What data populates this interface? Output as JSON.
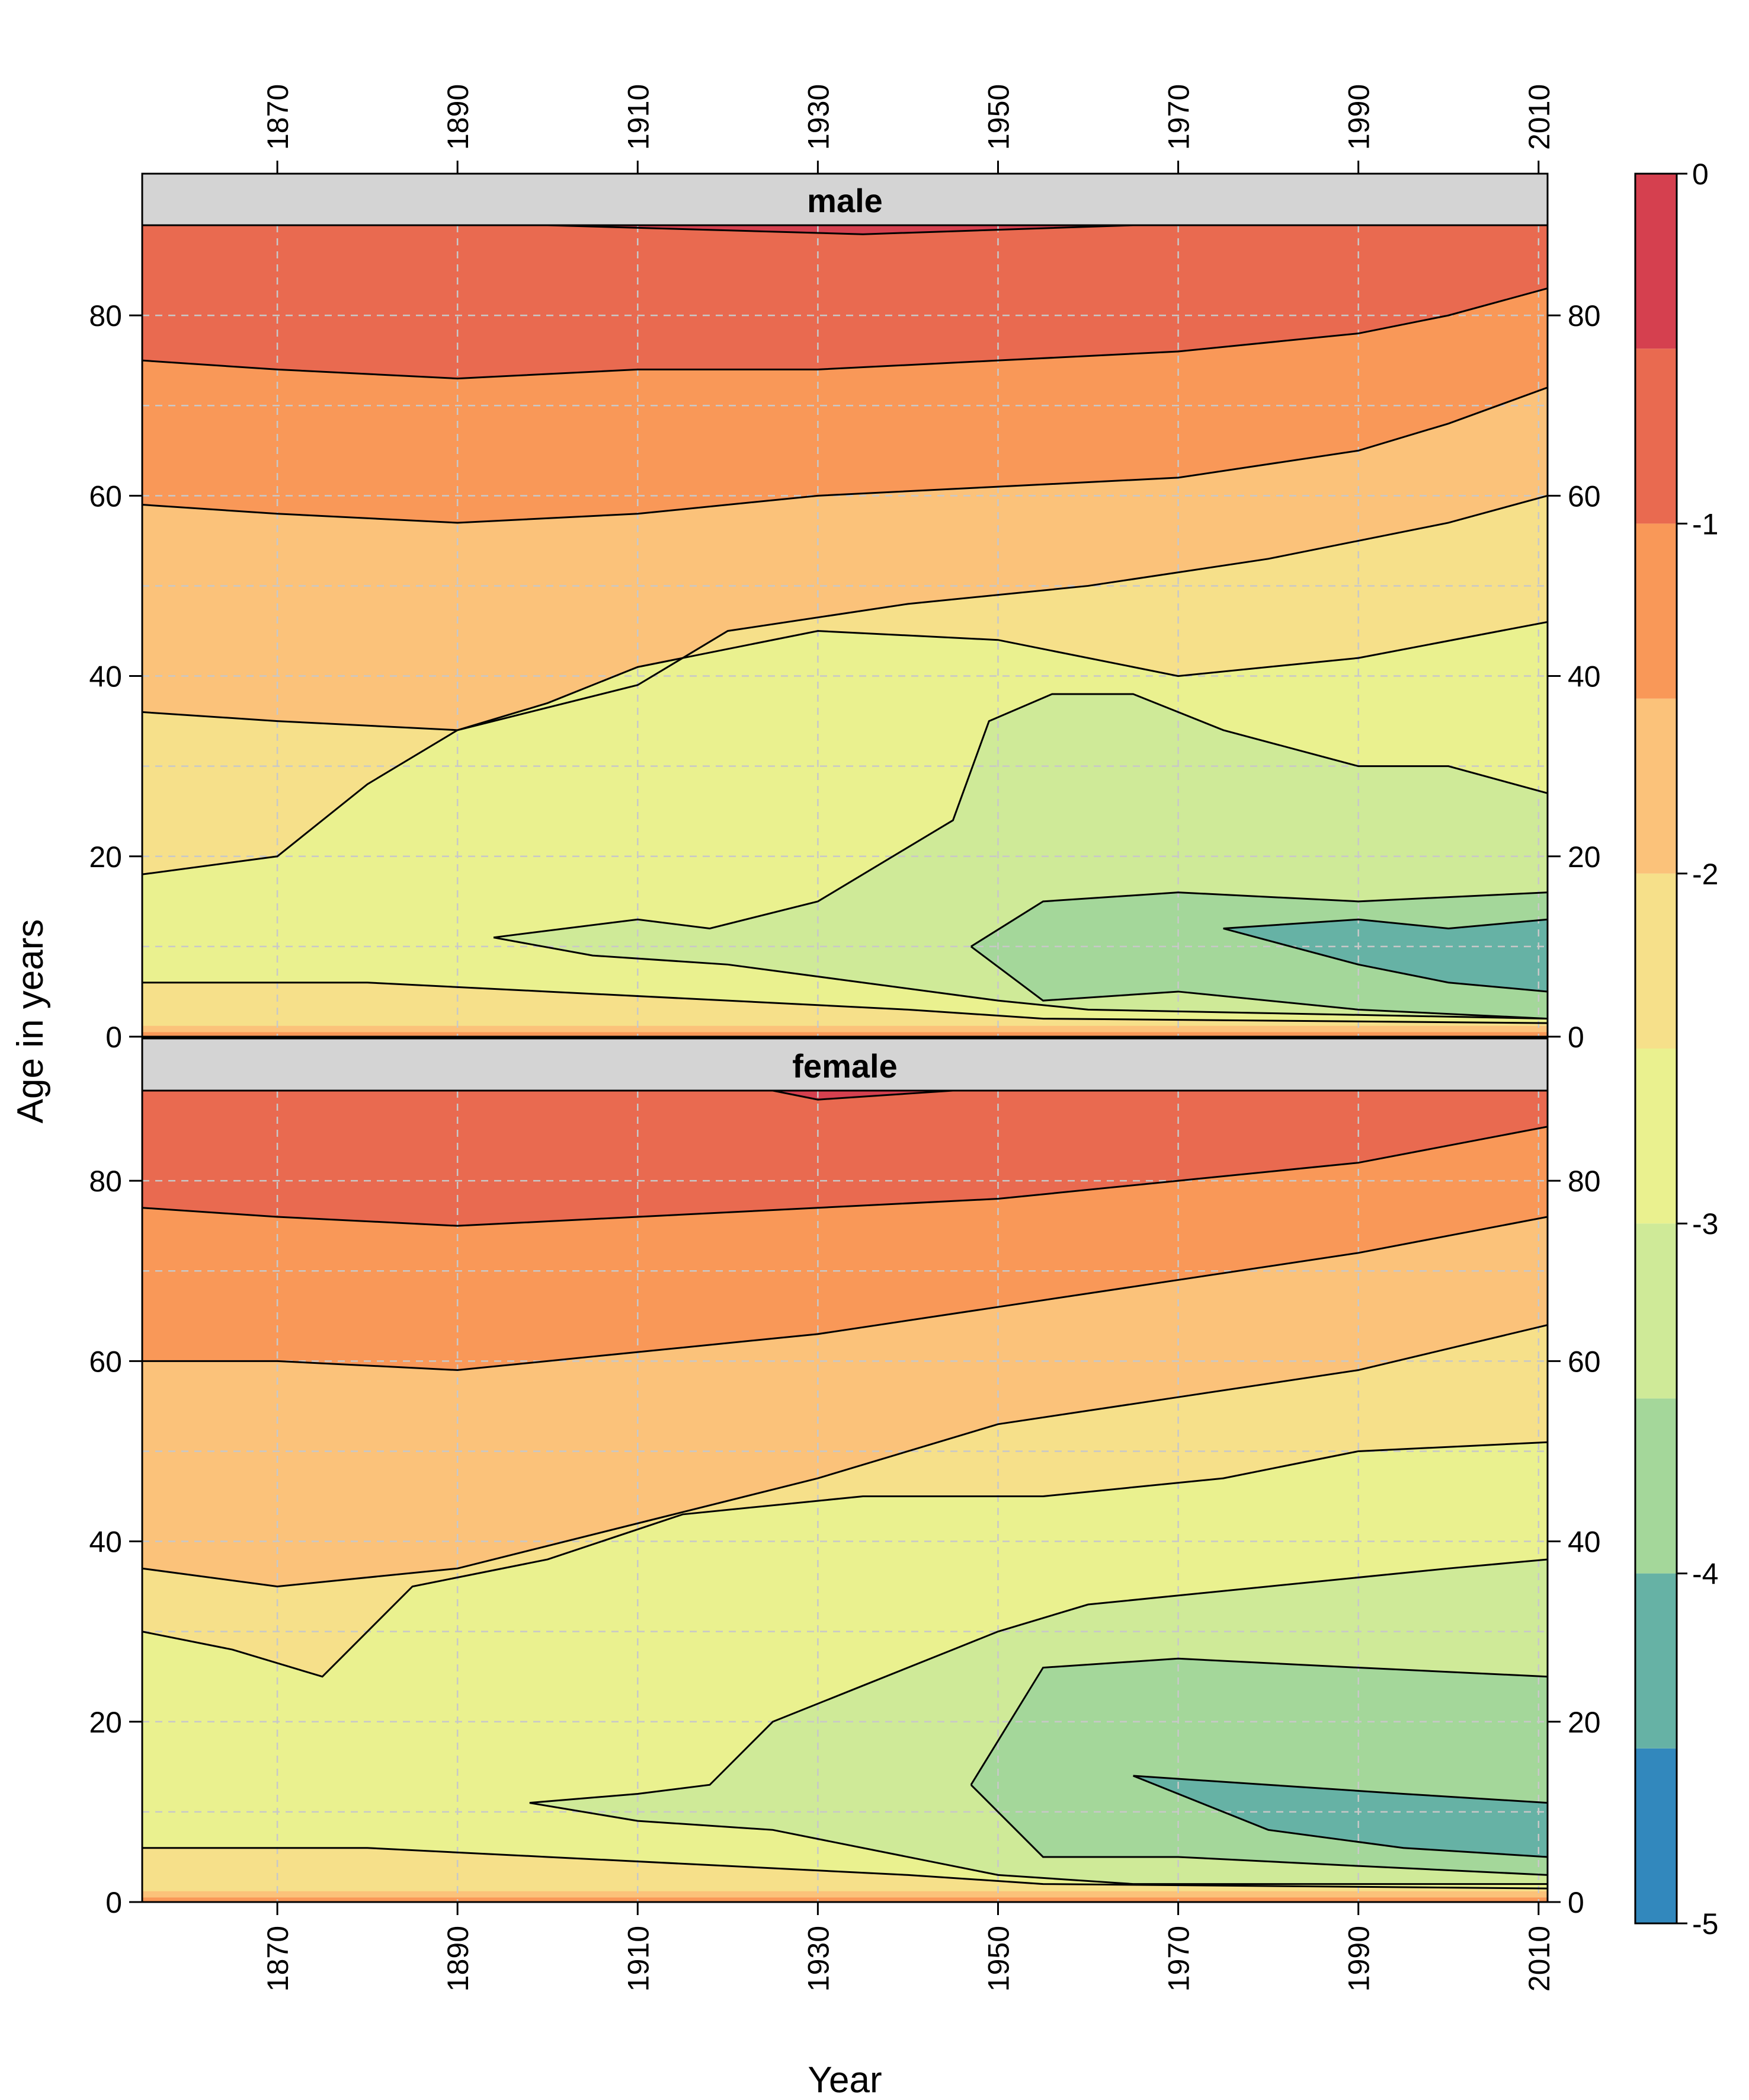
{
  "chart_data": {
    "type": "heatmap",
    "subtype": "filled contour (level plot), two panels",
    "xlabel": "Year",
    "ylabel": "Age in years",
    "xlim": [
      1855,
      2011
    ],
    "ylim": [
      0,
      90
    ],
    "x_ticks": [
      1870,
      1890,
      1910,
      1930,
      1950,
      1970,
      1990,
      2010
    ],
    "y_ticks": [
      0,
      20,
      40,
      60,
      80
    ],
    "grid": true,
    "colorkey": {
      "placement": "right",
      "ticks": [
        0,
        -1,
        -2,
        -3,
        -4,
        -5
      ],
      "levels": [
        {
          "from": -5.0,
          "to": -4.5,
          "color": "#3288bd"
        },
        {
          "from": -4.5,
          "to": -4.0,
          "color": "#66b2a5"
        },
        {
          "from": -4.0,
          "to": -3.5,
          "color": "#a4d79a"
        },
        {
          "from": -3.5,
          "to": -3.0,
          "color": "#cfea98"
        },
        {
          "from": -3.0,
          "to": -2.5,
          "color": "#eaf18f"
        },
        {
          "from": -2.5,
          "to": -2.0,
          "color": "#f6e08a"
        },
        {
          "from": -2.0,
          "to": -1.5,
          "color": "#fbc27a"
        },
        {
          "from": -1.5,
          "to": -1.0,
          "color": "#f99858"
        },
        {
          "from": -1.0,
          "to": -0.5,
          "color": "#e96a50"
        },
        {
          "from": -0.5,
          "to": 0.0,
          "color": "#d5404f"
        }
      ]
    },
    "panels": [
      {
        "name": "male",
        "contours": [
          {
            "level": -0.5,
            "points": [
              [
                1855,
                90
              ],
              [
                1900,
                90
              ],
              [
                1935,
                89
              ],
              [
                1965,
                90
              ],
              [
                2011,
                90
              ]
            ]
          },
          {
            "level": -1.0,
            "points": [
              [
                1855,
                75
              ],
              [
                1870,
                74
              ],
              [
                1890,
                73
              ],
              [
                1910,
                74
              ],
              [
                1930,
                74
              ],
              [
                1950,
                75
              ],
              [
                1970,
                76
              ],
              [
                1990,
                78
              ],
              [
                2000,
                80
              ],
              [
                2011,
                83
              ]
            ]
          },
          {
            "level": -1.5,
            "points": [
              [
                1855,
                59
              ],
              [
                1870,
                58
              ],
              [
                1890,
                57
              ],
              [
                1910,
                58
              ],
              [
                1930,
                60
              ],
              [
                1950,
                61
              ],
              [
                1970,
                62
              ],
              [
                1990,
                65
              ],
              [
                2000,
                68
              ],
              [
                2011,
                72
              ]
            ]
          },
          {
            "level": -2.0,
            "points": [
              [
                1855,
                36
              ],
              [
                1870,
                35
              ],
              [
                1890,
                34
              ],
              [
                1910,
                39
              ],
              [
                1920,
                45
              ],
              [
                1940,
                48
              ],
              [
                1960,
                50
              ],
              [
                1980,
                53
              ],
              [
                2000,
                57
              ],
              [
                2011,
                60
              ]
            ]
          },
          {
            "level": -2.5,
            "points": [
              [
                1855,
                18
              ],
              [
                1870,
                20
              ],
              [
                1880,
                28
              ],
              [
                1890,
                34
              ],
              [
                1900,
                37
              ],
              [
                1910,
                41
              ],
              [
                1930,
                45
              ],
              [
                1950,
                44
              ],
              [
                1970,
                40
              ],
              [
                1990,
                42
              ],
              [
                2011,
                46
              ]
            ]
          },
          {
            "level": -2.5,
            "points": [
              [
                1855,
                6
              ],
              [
                1880,
                6
              ],
              [
                1900,
                5
              ],
              [
                1920,
                4
              ],
              [
                1940,
                3
              ],
              [
                1955,
                2
              ],
              [
                2011,
                1.5
              ]
            ]
          },
          {
            "level": -3.0,
            "points": [
              [
                1894,
                11
              ],
              [
                1910,
                13
              ],
              [
                1918,
                12
              ],
              [
                1930,
                15
              ],
              [
                1945,
                24
              ],
              [
                1949,
                35
              ],
              [
                1956,
                38
              ],
              [
                1965,
                38
              ],
              [
                1975,
                34
              ],
              [
                1990,
                30
              ],
              [
                2000,
                30
              ],
              [
                2011,
                27
              ]
            ]
          },
          {
            "level": -3.0,
            "points": [
              [
                1894,
                11
              ],
              [
                1905,
                9
              ],
              [
                1920,
                8
              ],
              [
                1935,
                6
              ],
              [
                1950,
                4
              ],
              [
                1960,
                3
              ],
              [
                2011,
                2
              ]
            ]
          },
          {
            "level": -3.5,
            "points": [
              [
                1947,
                10
              ],
              [
                1955,
                15
              ],
              [
                1970,
                16
              ],
              [
                1990,
                15
              ],
              [
                2011,
                16
              ]
            ]
          },
          {
            "level": -3.5,
            "points": [
              [
                1947,
                10
              ],
              [
                1955,
                4
              ],
              [
                1970,
                5
              ],
              [
                1990,
                3
              ],
              [
                2011,
                2
              ]
            ]
          },
          {
            "level": -4.0,
            "points": [
              [
                1975,
                12
              ],
              [
                1990,
                13
              ],
              [
                2000,
                12
              ],
              [
                2011,
                13
              ]
            ]
          },
          {
            "level": -4.0,
            "points": [
              [
                1975,
                12
              ],
              [
                1990,
                8
              ],
              [
                2000,
                6
              ],
              [
                2011,
                5
              ]
            ]
          }
        ]
      },
      {
        "name": "female",
        "contours": [
          {
            "level": -0.5,
            "points": [
              [
                1855,
                90
              ],
              [
                1925,
                90
              ],
              [
                1930,
                89
              ],
              [
                1945,
                90
              ],
              [
                2011,
                90
              ]
            ]
          },
          {
            "level": -1.0,
            "points": [
              [
                1855,
                77
              ],
              [
                1870,
                76
              ],
              [
                1890,
                75
              ],
              [
                1910,
                76
              ],
              [
                1930,
                77
              ],
              [
                1950,
                78
              ],
              [
                1970,
                80
              ],
              [
                1990,
                82
              ],
              [
                2011,
                86
              ]
            ]
          },
          {
            "level": -1.5,
            "points": [
              [
                1855,
                60
              ],
              [
                1870,
                60
              ],
              [
                1890,
                59
              ],
              [
                1910,
                61
              ],
              [
                1930,
                63
              ],
              [
                1950,
                66
              ],
              [
                1970,
                69
              ],
              [
                1990,
                72
              ],
              [
                2011,
                76
              ]
            ]
          },
          {
            "level": -2.0,
            "points": [
              [
                1855,
                37
              ],
              [
                1870,
                35
              ],
              [
                1890,
                37
              ],
              [
                1910,
                42
              ],
              [
                1930,
                47
              ],
              [
                1950,
                53
              ],
              [
                1970,
                56
              ],
              [
                1990,
                59
              ],
              [
                2011,
                64
              ]
            ]
          },
          {
            "level": -2.5,
            "points": [
              [
                1855,
                30
              ],
              [
                1865,
                28
              ],
              [
                1875,
                25
              ],
              [
                1885,
                35
              ],
              [
                1900,
                38
              ],
              [
                1915,
                43
              ],
              [
                1935,
                45
              ],
              [
                1955,
                45
              ],
              [
                1975,
                47
              ],
              [
                1990,
                50
              ],
              [
                2011,
                51
              ]
            ]
          },
          {
            "level": -2.5,
            "points": [
              [
                1855,
                6
              ],
              [
                1880,
                6
              ],
              [
                1900,
                5
              ],
              [
                1920,
                4
              ],
              [
                1940,
                3
              ],
              [
                1955,
                2
              ],
              [
                2011,
                1.5
              ]
            ]
          },
          {
            "level": -3.0,
            "points": [
              [
                1898,
                11
              ],
              [
                1910,
                12
              ],
              [
                1918,
                13
              ],
              [
                1925,
                20
              ],
              [
                1935,
                24
              ],
              [
                1945,
                28
              ],
              [
                1950,
                30
              ],
              [
                1960,
                33
              ],
              [
                1980,
                35
              ],
              [
                2000,
                37
              ],
              [
                2011,
                38
              ]
            ]
          },
          {
            "level": -3.0,
            "points": [
              [
                1898,
                11
              ],
              [
                1910,
                9
              ],
              [
                1925,
                8
              ],
              [
                1940,
                5
              ],
              [
                1950,
                3
              ],
              [
                1965,
                2
              ],
              [
                2011,
                2
              ]
            ]
          },
          {
            "level": -3.5,
            "points": [
              [
                1947,
                13
              ],
              [
                1955,
                26
              ],
              [
                1970,
                27
              ],
              [
                1990,
                26
              ],
              [
                2011,
                25
              ]
            ]
          },
          {
            "level": -3.5,
            "points": [
              [
                1947,
                13
              ],
              [
                1955,
                5
              ],
              [
                1970,
                5
              ],
              [
                1990,
                4
              ],
              [
                2011,
                3
              ]
            ]
          },
          {
            "level": -4.0,
            "points": [
              [
                1965,
                14
              ],
              [
                1980,
                13
              ],
              [
                1995,
                12
              ],
              [
                2011,
                11
              ]
            ]
          },
          {
            "level": -4.0,
            "points": [
              [
                1965,
                14
              ],
              [
                1980,
                8
              ],
              [
                1995,
                6
              ],
              [
                2011,
                5
              ]
            ]
          }
        ]
      }
    ]
  }
}
